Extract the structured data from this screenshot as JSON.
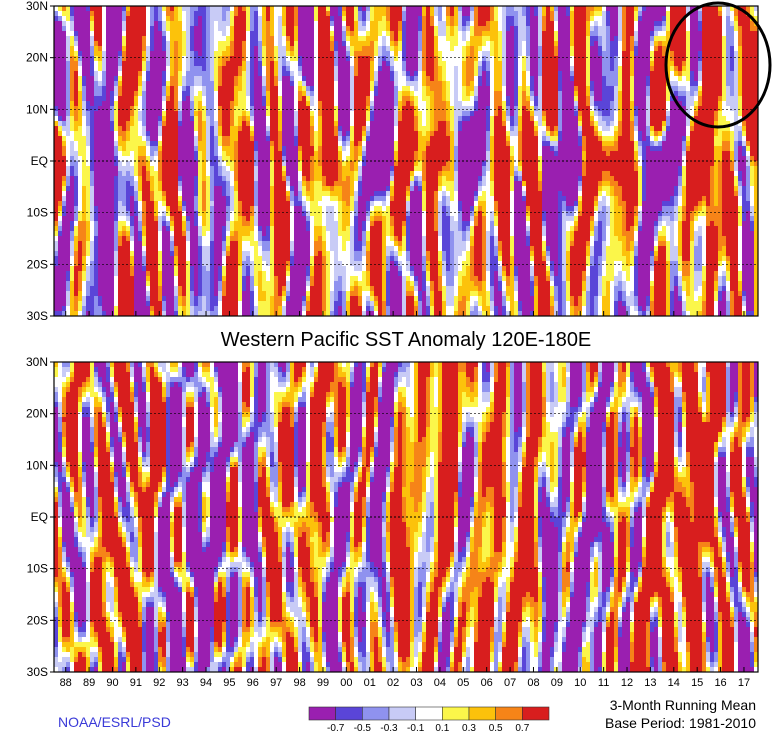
{
  "chart_data": [
    {
      "type": "heatmap",
      "panel": "top",
      "yticks": [
        "30N",
        "20N",
        "10N",
        "EQ",
        "10S",
        "20S",
        "30S"
      ],
      "x_range": [
        1987.5,
        2017.6
      ],
      "y_range": [
        -30,
        30
      ],
      "highlight": "circle around 2015-2016 warm anomaly, 10N-30N"
    },
    {
      "type": "heatmap",
      "panel": "bottom",
      "title": "Western Pacific SST Anomaly 120E-180E",
      "yticks": [
        "30N",
        "20N",
        "10N",
        "EQ",
        "10S",
        "20S",
        "30S"
      ],
      "xticks": [
        "88",
        "89",
        "90",
        "91",
        "92",
        "93",
        "94",
        "95",
        "96",
        "97",
        "98",
        "99",
        "00",
        "01",
        "02",
        "03",
        "04",
        "05",
        "06",
        "07",
        "08",
        "09",
        "10",
        "11",
        "12",
        "13",
        "14",
        "15",
        "16",
        "17"
      ],
      "x_range": [
        1987.5,
        2017.6
      ],
      "y_range": [
        -30,
        30
      ]
    }
  ],
  "colorbar": {
    "labels": [
      "-0.7",
      "-0.5",
      "-0.3",
      "-0.1",
      "0.1",
      "0.3",
      "0.5",
      "0.7"
    ],
    "colors": [
      "#9a1fb0",
      "#5a45d8",
      "#8f92ef",
      "#c8cbf6",
      "#ffffff",
      "#fbf64a",
      "#fcc20b",
      "#f68418",
      "#d81e1e"
    ]
  },
  "footer": {
    "credit": "NOAA/ESRL/PSD",
    "running_mean": "3-Month Running Mean",
    "base_period": "Base Period: 1981-2010"
  }
}
